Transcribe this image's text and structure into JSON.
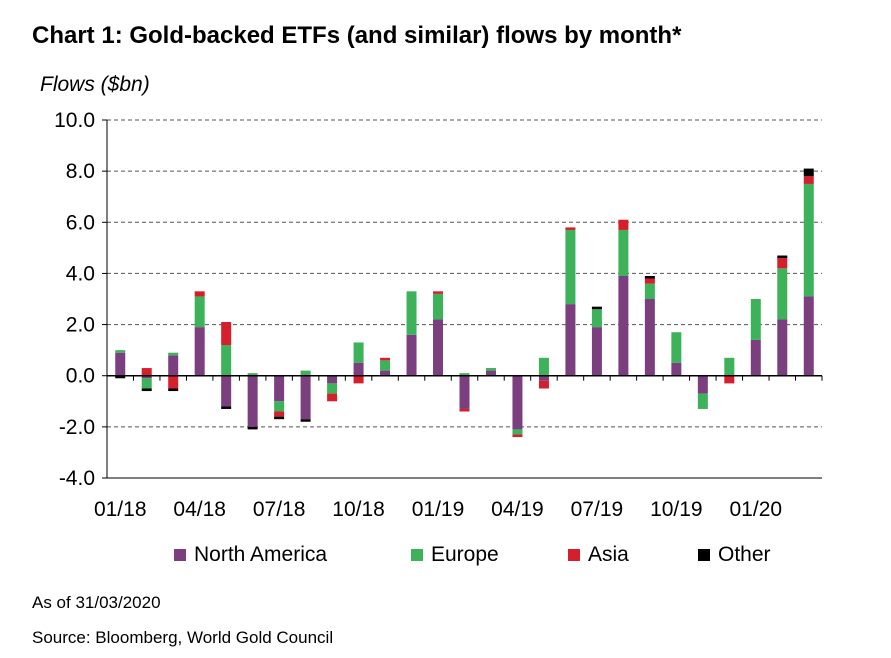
{
  "title": "Chart 1: Gold-backed ETFs (and similar) flows by month*",
  "as_of": "As of 31/03/2020",
  "source": "Source: Bloomberg, World Gold Council",
  "colors": {
    "North America": "#7B3F7F",
    "Europe": "#3DB25B",
    "Asia": "#D61F2C",
    "Other": "#000000",
    "grid": "#555555",
    "axis": "#000000"
  },
  "chart_data": {
    "type": "bar",
    "stacked": true,
    "ylabel": "Flows ($bn)",
    "ylim": [
      -4.0,
      10.0
    ],
    "yticks": [
      -4.0,
      -2.0,
      0.0,
      2.0,
      4.0,
      6.0,
      8.0,
      10.0
    ],
    "ytick_labels": [
      "-4.0",
      "-2.0",
      "0.0",
      "2.0",
      "4.0",
      "6.0",
      "8.0",
      "10.0"
    ],
    "grid": true,
    "legend_position": "bottom",
    "x_tick_labels": [
      "01/18",
      "04/18",
      "07/18",
      "10/18",
      "01/19",
      "04/19",
      "07/19",
      "10/19",
      "01/20"
    ],
    "x_tick_every": 3,
    "categories": [
      "01/18",
      "02/18",
      "03/18",
      "04/18",
      "05/18",
      "06/18",
      "07/18",
      "08/18",
      "09/18",
      "10/18",
      "11/18",
      "12/18",
      "01/19",
      "02/19",
      "03/19",
      "04/19",
      "05/19",
      "06/19",
      "07/19",
      "08/19",
      "09/19",
      "10/19",
      "11/19",
      "12/19",
      "01/20",
      "02/20",
      "03/20"
    ],
    "series": [
      {
        "name": "North America",
        "values": [
          0.9,
          -0.1,
          0.8,
          1.9,
          -1.2,
          -2.0,
          -1.0,
          -1.7,
          -0.3,
          0.5,
          0.2,
          1.6,
          2.2,
          -1.3,
          0.2,
          -2.1,
          -0.2,
          2.8,
          1.9,
          3.9,
          3.0,
          0.5,
          -0.7,
          0.0,
          1.4,
          2.2,
          3.1
        ]
      },
      {
        "name": "Europe",
        "values": [
          0.1,
          -0.4,
          0.1,
          1.2,
          1.2,
          0.1,
          -0.4,
          0.2,
          -0.4,
          0.8,
          0.4,
          1.7,
          1.0,
          0.1,
          0.1,
          -0.2,
          0.7,
          2.9,
          0.7,
          1.8,
          0.6,
          1.2,
          -0.6,
          0.7,
          1.6,
          2.0,
          4.4
        ]
      },
      {
        "name": "Asia",
        "values": [
          0.0,
          0.3,
          -0.5,
          0.2,
          0.9,
          0.0,
          -0.2,
          0.0,
          -0.3,
          -0.3,
          0.1,
          0.0,
          0.1,
          -0.1,
          0.0,
          -0.1,
          -0.3,
          0.1,
          0.0,
          0.4,
          0.2,
          0.0,
          0.0,
          -0.3,
          0.0,
          0.4,
          0.3
        ]
      },
      {
        "name": "Other",
        "values": [
          -0.1,
          -0.1,
          -0.1,
          0.0,
          -0.1,
          -0.1,
          -0.1,
          -0.1,
          0.0,
          0.0,
          0.0,
          0.0,
          0.0,
          0.0,
          0.0,
          0.0,
          0.0,
          0.0,
          0.1,
          0.0,
          0.1,
          0.0,
          0.0,
          0.0,
          0.0,
          0.1,
          0.3
        ]
      }
    ]
  }
}
